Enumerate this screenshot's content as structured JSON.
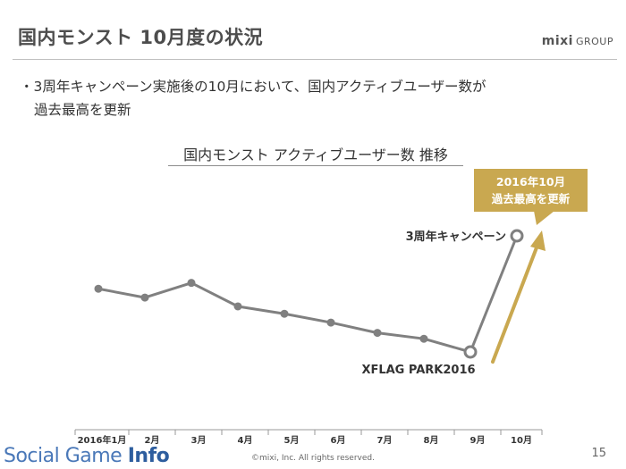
{
  "slide": {
    "title": "国内モンスト 10月度の状況",
    "brand_main": "mixi",
    "brand_sub": "GROUP",
    "bullet_line1": "・3周年キャンペーン実施後の10月において、国内アクティブユーザー数が",
    "bullet_line2": "過去最高を更新",
    "page_number": "15",
    "copyright": "©mixi, Inc. All rights reserved.",
    "footer_logo_main": "Social Game ",
    "footer_logo_strong": "Info"
  },
  "colors": {
    "line": "#808080",
    "accent": "#c9a850",
    "axis": "#999999"
  },
  "chart_data": {
    "type": "line",
    "title": "国内モンスト アクティブユーザー数 推移",
    "categories": [
      "2016年1月",
      "2月",
      "3月",
      "4月",
      "5月",
      "6月",
      "7月",
      "8月",
      "9月",
      "10月"
    ],
    "series": [
      {
        "values": [
          64,
          58,
          68,
          52,
          47,
          41,
          34,
          30,
          21,
          100
        ]
      }
    ],
    "ylim": [
      0,
      100
    ],
    "y_axis_shown": false,
    "grid": false,
    "annotations": {
      "campaign_label": "3周年キャンペーン",
      "event_label": "XFLAG PARK2016",
      "callout_line1": "2016年10月",
      "callout_line2": "過去最高を更新"
    }
  }
}
